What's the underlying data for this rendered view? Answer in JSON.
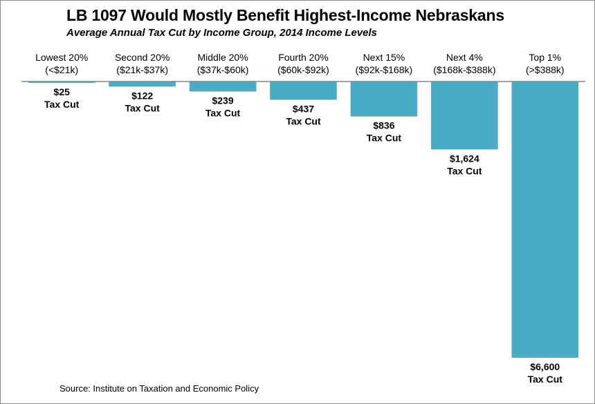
{
  "chart_data": {
    "type": "bar",
    "title": "LB 1097 Would Mostly Benefit Highest-Income Nebraskans",
    "subtitle": "Average Annual Tax Cut by Income Group, 2014 Income Levels",
    "source": "Source: Institute on Taxation and Economic Policy",
    "categories": [
      {
        "name": "Lowest 20%",
        "range": "(<$21k)"
      },
      {
        "name": "Second 20%",
        "range": "($21k-$37k)"
      },
      {
        "name": "Middle 20%",
        "range": "($37k-$60k)"
      },
      {
        "name": "Fourth 20%",
        "range": "($60k-$92k)"
      },
      {
        "name": "Next 15%",
        "range": "($92k-$168k)"
      },
      {
        "name": "Next 4%",
        "range": "($168k-$388k)"
      },
      {
        "name": "Top 1%",
        "range": "(>$388k)"
      }
    ],
    "values": [
      25,
      122,
      239,
      437,
      836,
      1624,
      6600
    ],
    "value_labels": [
      "$25",
      "$122",
      "$239",
      "$437",
      "$836",
      "$1,624",
      "$6,600"
    ],
    "value_suffix": "Tax Cut",
    "ylim": [
      0,
      6600
    ],
    "orientation": "bars hang downward from top axis",
    "grid": false,
    "legend": "none",
    "bar_color": "#4bacc6",
    "axis_color": "#868686"
  }
}
